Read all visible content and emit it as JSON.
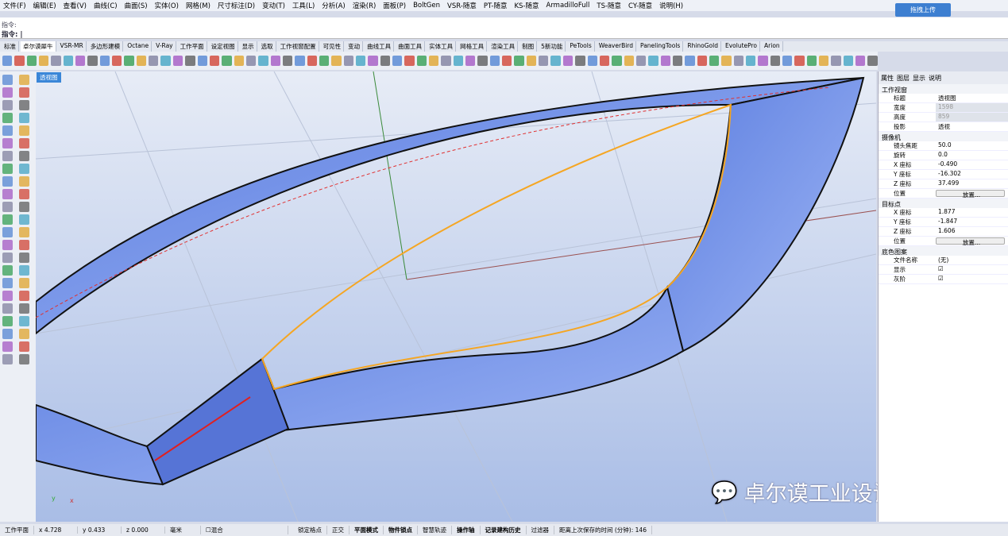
{
  "menu": [
    "文件(F)",
    "编辑(E)",
    "查看(V)",
    "曲线(C)",
    "曲面(S)",
    "实体(O)",
    "网格(M)",
    "尺寸标注(D)",
    "变动(T)",
    "工具(L)",
    "分析(A)",
    "渲染(R)",
    "面板(P)",
    "BoltGen",
    "VSR-随意",
    "PT-随意",
    "KS-随意",
    "ArmadilloFull",
    "TS-随意",
    "CY-随意",
    "说明(H)"
  ],
  "upload_label": "拖拽上传",
  "command": {
    "history": "指令:",
    "prompt": "指令:"
  },
  "tabs": [
    "标准",
    "卓尔谟犀牛",
    "VSR-MR",
    "多边形建模",
    "Octane",
    "V-Ray",
    "工作平面",
    "设定视图",
    "显示",
    "选取",
    "工作视窗配置",
    "可见性",
    "变动",
    "曲线工具",
    "曲面工具",
    "实体工具",
    "网格工具",
    "渲染工具",
    "制图",
    "5新功能",
    "PeTools",
    "WeaverBird",
    "PanelingTools",
    "RhinoGold",
    "EvolutePro",
    "Arion"
  ],
  "active_tab": "卓尔谟犀牛",
  "viewport": {
    "title": "透视图"
  },
  "panel": {
    "tabs": [
      "属性",
      "图层",
      "显示",
      "说明"
    ],
    "sections": [
      {
        "title": "工作视窗",
        "rows": [
          {
            "k": "标题",
            "v": "透视图"
          },
          {
            "k": "宽度",
            "v": "1598",
            "disabled": true
          },
          {
            "k": "高度",
            "v": "859",
            "disabled": true
          },
          {
            "k": "投影",
            "v": "透视"
          }
        ]
      },
      {
        "title": "摄像机",
        "rows": [
          {
            "k": "镜头焦距",
            "v": "50.0"
          },
          {
            "k": "旋转",
            "v": "0.0"
          },
          {
            "k": "X 座标",
            "v": "-0.490"
          },
          {
            "k": "Y 座标",
            "v": "-16.302"
          },
          {
            "k": "Z 座标",
            "v": "37.499"
          },
          {
            "k": "位置",
            "v": "放置...",
            "button": true
          }
        ]
      },
      {
        "title": "目标点",
        "rows": [
          {
            "k": "X 座标",
            "v": "1.877"
          },
          {
            "k": "Y 座标",
            "v": "-1.847"
          },
          {
            "k": "Z 座标",
            "v": "1.606"
          },
          {
            "k": "位置",
            "v": "放置...",
            "button": true
          }
        ]
      },
      {
        "title": "底色图案",
        "rows": [
          {
            "k": "文件名称",
            "v": "(无)"
          },
          {
            "k": "显示",
            "v": "☑"
          },
          {
            "k": "灰阶",
            "v": "☑"
          }
        ]
      }
    ]
  },
  "status": {
    "cplane": "工作平面",
    "x": "x 4.728",
    "y": "y 0.433",
    "z": "z 0.000",
    "unit": "毫米",
    "blend": "混合",
    "items": [
      "锁定格点",
      "正交",
      "平面模式",
      "物件锁点",
      "智慧轨迹",
      "操作轴",
      "记录建构历史",
      "过滤器"
    ],
    "bold": [
      false,
      false,
      true,
      true,
      false,
      true,
      true,
      false
    ],
    "save": "距离上次保存的时间 (分钟): 146"
  },
  "watermark": "卓尔谟工业设计小站",
  "colors": {
    "surface": "#7f9ef0",
    "edge_selected": "#f5a623",
    "viewport_bg": "#c9d5ee"
  }
}
